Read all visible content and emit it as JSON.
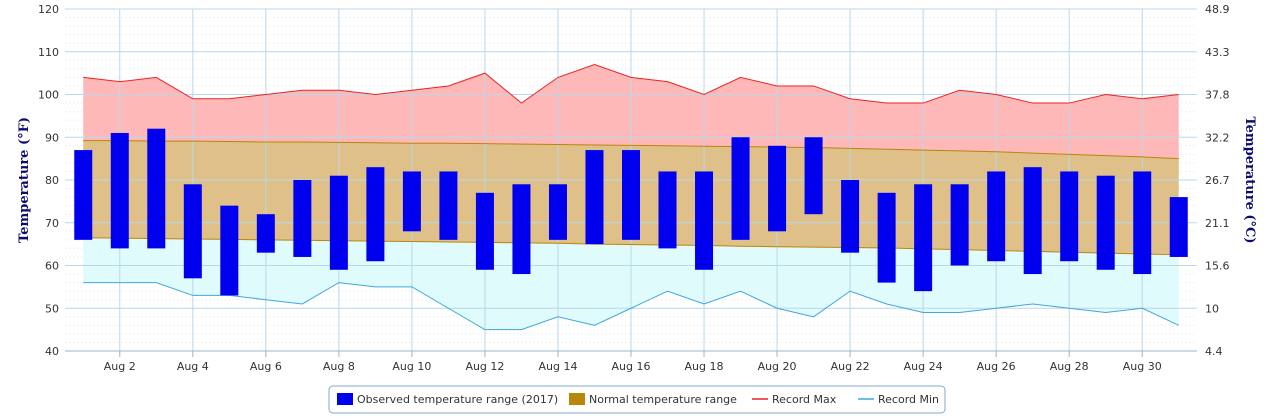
{
  "chart_data": {
    "type": "bar",
    "title": "",
    "ylabel": "Temperature (°F)",
    "y2label": "Temperature (°C)",
    "ylim": [
      40,
      120
    ],
    "yticks": [
      40,
      50,
      60,
      70,
      80,
      90,
      100,
      110,
      120
    ],
    "y2ticks": [
      "4.4",
      "10",
      "15.6",
      "21.1",
      "26.7",
      "32.2",
      "37.8",
      "43.3",
      "48.9"
    ],
    "xlim": [
      0.5,
      31.5
    ],
    "xticks": [
      {
        "x": 2,
        "label": "Aug 2"
      },
      {
        "x": 4,
        "label": "Aug 4"
      },
      {
        "x": 6,
        "label": "Aug 6"
      },
      {
        "x": 8,
        "label": "Aug 8"
      },
      {
        "x": 10,
        "label": "Aug 10"
      },
      {
        "x": 12,
        "label": "Aug 12"
      },
      {
        "x": 14,
        "label": "Aug 14"
      },
      {
        "x": 16,
        "label": "Aug 16"
      },
      {
        "x": 18,
        "label": "Aug 18"
      },
      {
        "x": 20,
        "label": "Aug 20"
      },
      {
        "x": 22,
        "label": "Aug 22"
      },
      {
        "x": 24,
        "label": "Aug 24"
      },
      {
        "x": 26,
        "label": "Aug 26"
      },
      {
        "x": 28,
        "label": "Aug 28"
      },
      {
        "x": 30,
        "label": "Aug 30"
      }
    ],
    "days": [
      1,
      2,
      3,
      4,
      5,
      6,
      7,
      8,
      9,
      10,
      11,
      12,
      13,
      14,
      15,
      16,
      17,
      18,
      19,
      20,
      21,
      22,
      23,
      24,
      25,
      26,
      27,
      28,
      29,
      30,
      31
    ],
    "series": [
      {
        "name": "Observed temperature range (2017)",
        "kind": "range-bar",
        "color": "#0000ee",
        "low": [
          66,
          64,
          64,
          57,
          53,
          63,
          62,
          59,
          61,
          68,
          66,
          59,
          58,
          66,
          65,
          66,
          64,
          59,
          66,
          68,
          72,
          63,
          56,
          54,
          60,
          61,
          58,
          61,
          59,
          58,
          62
        ],
        "high": [
          87,
          91,
          92,
          79,
          74,
          72,
          80,
          81,
          83,
          82,
          82,
          77,
          79,
          79,
          87,
          87,
          82,
          82,
          90,
          88,
          90,
          80,
          77,
          79,
          79,
          82,
          83,
          82,
          81,
          82,
          76
        ]
      },
      {
        "name": "Normal temperature range",
        "kind": "band",
        "color": "#b8860b",
        "low": [
          66.5,
          66.4,
          66.3,
          66.2,
          66.1,
          66.0,
          65.9,
          65.8,
          65.7,
          65.6,
          65.5,
          65.4,
          65.3,
          65.2,
          65.0,
          64.9,
          64.8,
          64.7,
          64.5,
          64.4,
          64.3,
          64.2,
          64.1,
          63.9,
          63.7,
          63.5,
          63.3,
          63.1,
          62.9,
          62.7,
          62.5
        ],
        "high": [
          89.2,
          89.2,
          89.1,
          89.1,
          89.0,
          88.9,
          88.9,
          88.8,
          88.7,
          88.6,
          88.6,
          88.5,
          88.4,
          88.3,
          88.2,
          88.1,
          88.0,
          87.9,
          87.8,
          87.7,
          87.6,
          87.4,
          87.2,
          87.0,
          86.8,
          86.6,
          86.3,
          86.0,
          85.7,
          85.4,
          85.0
        ]
      },
      {
        "name": "Record Max",
        "kind": "line",
        "color": "#ee2222",
        "values": [
          104,
          103,
          104,
          99,
          99,
          100,
          101,
          101,
          100,
          101,
          102,
          105,
          98,
          104,
          107,
          104,
          103,
          100,
          104,
          102,
          102,
          99,
          98,
          98,
          101,
          100,
          98,
          98,
          100,
          99,
          100
        ]
      },
      {
        "name": "Record Min",
        "kind": "line",
        "color": "#3fa6e0",
        "values": [
          56,
          56,
          56,
          53,
          53,
          52,
          51,
          56,
          55,
          55,
          50,
          45,
          45,
          48,
          46,
          50,
          54,
          51,
          54,
          50,
          48,
          54,
          51,
          49,
          49,
          50,
          51,
          50,
          49,
          50,
          46
        ]
      }
    ],
    "colors": {
      "record_fill": "#ffb8b8",
      "normal_fill": "#dfc089",
      "min_fill": "#e0fbfb",
      "grid_major": "#b8d8ea",
      "grid_minor": "#e4e4e4"
    },
    "legend_position": "bottom-center",
    "grid": true
  }
}
